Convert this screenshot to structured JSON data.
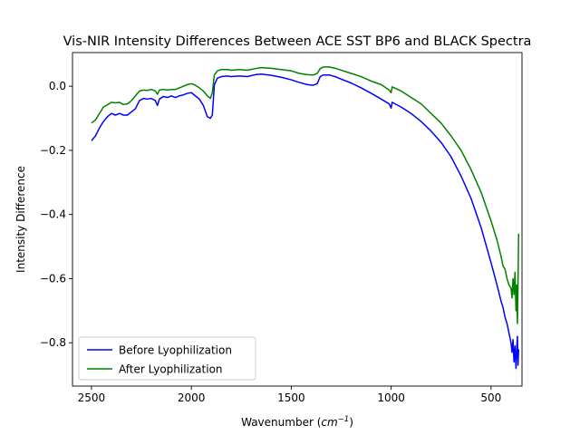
{
  "chart_data": {
    "type": "line",
    "title": "Vis-NIR Intensity Differences Between ACE SST BP6 and BLACK Spectra",
    "xlabel_main": "Wavenumber (",
    "xlabel_math": "cm",
    "xlabel_sup": "−1",
    "xlabel_tail": ")",
    "ylabel": "Intensity Difference",
    "xlim": [
      2595,
      345
    ],
    "ylim": [
      -0.935,
      0.105
    ],
    "x_ticks": [
      2500,
      2000,
      1500,
      1000,
      500
    ],
    "x_tick_labels": [
      "2500",
      "2000",
      "1500",
      "1000",
      "500"
    ],
    "y_ticks": [
      0.0,
      -0.2,
      -0.4,
      -0.6,
      -0.8
    ],
    "y_tick_labels": [
      "0.0",
      "−0.2",
      "−0.4",
      "−0.6",
      "−0.8"
    ],
    "grid": false,
    "legend_position": "lower-left",
    "series": [
      {
        "name": "Before Lyophilization",
        "color": "#0000ff",
        "points": [
          [
            2500,
            -0.17
          ],
          [
            2480,
            -0.155
          ],
          [
            2460,
            -0.13
          ],
          [
            2440,
            -0.11
          ],
          [
            2420,
            -0.095
          ],
          [
            2400,
            -0.085
          ],
          [
            2380,
            -0.09
          ],
          [
            2360,
            -0.085
          ],
          [
            2340,
            -0.09
          ],
          [
            2320,
            -0.09
          ],
          [
            2300,
            -0.08
          ],
          [
            2280,
            -0.07
          ],
          [
            2260,
            -0.045
          ],
          [
            2240,
            -0.038
          ],
          [
            2220,
            -0.04
          ],
          [
            2200,
            -0.038
          ],
          [
            2180,
            -0.045
          ],
          [
            2170,
            -0.06
          ],
          [
            2160,
            -0.04
          ],
          [
            2140,
            -0.032
          ],
          [
            2120,
            -0.035
          ],
          [
            2100,
            -0.03
          ],
          [
            2080,
            -0.035
          ],
          [
            2060,
            -0.03
          ],
          [
            2040,
            -0.027
          ],
          [
            2020,
            -0.022
          ],
          [
            2000,
            -0.02
          ],
          [
            1990,
            -0.025
          ],
          [
            1980,
            -0.03
          ],
          [
            1960,
            -0.04
          ],
          [
            1940,
            -0.06
          ],
          [
            1920,
            -0.095
          ],
          [
            1905,
            -0.1
          ],
          [
            1895,
            -0.09
          ],
          [
            1885,
            0.005
          ],
          [
            1870,
            0.025
          ],
          [
            1850,
            0.03
          ],
          [
            1820,
            0.032
          ],
          [
            1800,
            0.03
          ],
          [
            1760,
            0.032
          ],
          [
            1720,
            0.03
          ],
          [
            1680,
            0.036
          ],
          [
            1650,
            0.038
          ],
          [
            1600,
            0.034
          ],
          [
            1550,
            0.028
          ],
          [
            1500,
            0.02
          ],
          [
            1460,
            0.012
          ],
          [
            1420,
            0.005
          ],
          [
            1390,
            0.003
          ],
          [
            1370,
            0.008
          ],
          [
            1355,
            0.03
          ],
          [
            1340,
            0.035
          ],
          [
            1310,
            0.035
          ],
          [
            1280,
            0.03
          ],
          [
            1250,
            0.022
          ],
          [
            1200,
            0.01
          ],
          [
            1150,
            -0.005
          ],
          [
            1100,
            -0.022
          ],
          [
            1050,
            -0.04
          ],
          [
            1010,
            -0.055
          ],
          [
            1000,
            -0.068
          ],
          [
            995,
            -0.05
          ],
          [
            950,
            -0.065
          ],
          [
            900,
            -0.085
          ],
          [
            850,
            -0.11
          ],
          [
            800,
            -0.14
          ],
          [
            750,
            -0.175
          ],
          [
            700,
            -0.22
          ],
          [
            650,
            -0.28
          ],
          [
            600,
            -0.35
          ],
          [
            550,
            -0.44
          ],
          [
            500,
            -0.55
          ],
          [
            470,
            -0.62
          ],
          [
            450,
            -0.67
          ],
          [
            440,
            -0.69
          ],
          [
            430,
            -0.72
          ],
          [
            420,
            -0.74
          ],
          [
            410,
            -0.77
          ],
          [
            400,
            -0.8
          ],
          [
            395,
            -0.83
          ],
          [
            390,
            -0.79
          ],
          [
            385,
            -0.86
          ],
          [
            380,
            -0.81
          ],
          [
            375,
            -0.88
          ],
          [
            372,
            -0.83
          ],
          [
            368,
            -0.78
          ],
          [
            365,
            -0.87
          ],
          [
            362,
            -0.82
          ]
        ]
      },
      {
        "name": "After Lyophilization",
        "color": "#008000",
        "points": [
          [
            2500,
            -0.115
          ],
          [
            2480,
            -0.105
          ],
          [
            2460,
            -0.085
          ],
          [
            2440,
            -0.065
          ],
          [
            2420,
            -0.058
          ],
          [
            2400,
            -0.05
          ],
          [
            2380,
            -0.052
          ],
          [
            2360,
            -0.05
          ],
          [
            2340,
            -0.057
          ],
          [
            2320,
            -0.055
          ],
          [
            2300,
            -0.045
          ],
          [
            2280,
            -0.03
          ],
          [
            2260,
            -0.015
          ],
          [
            2240,
            -0.012
          ],
          [
            2220,
            -0.013
          ],
          [
            2200,
            -0.01
          ],
          [
            2180,
            -0.015
          ],
          [
            2170,
            -0.025
          ],
          [
            2160,
            -0.012
          ],
          [
            2140,
            -0.01
          ],
          [
            2120,
            -0.012
          ],
          [
            2100,
            -0.01
          ],
          [
            2080,
            -0.01
          ],
          [
            2060,
            -0.005
          ],
          [
            2040,
            0.0
          ],
          [
            2020,
            0.005
          ],
          [
            2000,
            0.008
          ],
          [
            1990,
            0.006
          ],
          [
            1980,
            0.003
          ],
          [
            1960,
            -0.005
          ],
          [
            1940,
            -0.015
          ],
          [
            1920,
            -0.03
          ],
          [
            1905,
            -0.038
          ],
          [
            1895,
            -0.02
          ],
          [
            1885,
            0.035
          ],
          [
            1870,
            0.048
          ],
          [
            1850,
            0.052
          ],
          [
            1820,
            0.052
          ],
          [
            1800,
            0.05
          ],
          [
            1760,
            0.052
          ],
          [
            1720,
            0.05
          ],
          [
            1680,
            0.055
          ],
          [
            1650,
            0.058
          ],
          [
            1600,
            0.056
          ],
          [
            1550,
            0.052
          ],
          [
            1500,
            0.048
          ],
          [
            1460,
            0.04
          ],
          [
            1420,
            0.036
          ],
          [
            1390,
            0.035
          ],
          [
            1370,
            0.04
          ],
          [
            1355,
            0.055
          ],
          [
            1340,
            0.06
          ],
          [
            1310,
            0.06
          ],
          [
            1280,
            0.056
          ],
          [
            1250,
            0.05
          ],
          [
            1200,
            0.04
          ],
          [
            1150,
            0.03
          ],
          [
            1100,
            0.016
          ],
          [
            1050,
            0.005
          ],
          [
            1010,
            -0.012
          ],
          [
            1000,
            -0.02
          ],
          [
            995,
            -0.002
          ],
          [
            950,
            -0.015
          ],
          [
            900,
            -0.035
          ],
          [
            850,
            -0.055
          ],
          [
            800,
            -0.085
          ],
          [
            750,
            -0.115
          ],
          [
            700,
            -0.155
          ],
          [
            650,
            -0.2
          ],
          [
            600,
            -0.26
          ],
          [
            550,
            -0.33
          ],
          [
            500,
            -0.42
          ],
          [
            470,
            -0.48
          ],
          [
            450,
            -0.53
          ],
          [
            440,
            -0.56
          ],
          [
            430,
            -0.57
          ],
          [
            420,
            -0.6
          ],
          [
            410,
            -0.62
          ],
          [
            400,
            -0.63
          ],
          [
            395,
            -0.66
          ],
          [
            390,
            -0.6
          ],
          [
            385,
            -0.65
          ],
          [
            380,
            -0.58
          ],
          [
            375,
            -0.7
          ],
          [
            372,
            -0.62
          ],
          [
            368,
            -0.74
          ],
          [
            365,
            -0.62
          ],
          [
            362,
            -0.46
          ]
        ]
      }
    ]
  }
}
